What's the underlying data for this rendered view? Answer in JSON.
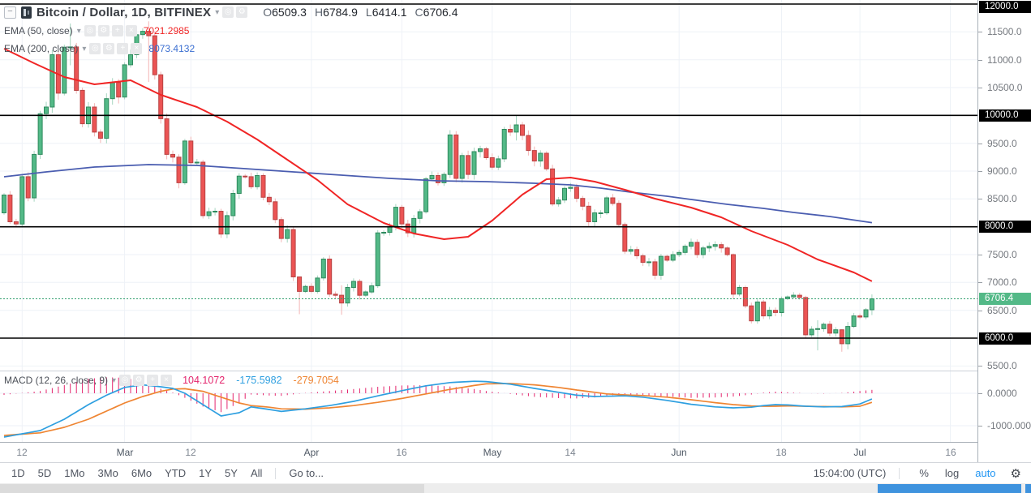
{
  "colors": {
    "up_fill": "#53b987",
    "up_border": "#2f8a5e",
    "up_wick": "#a6d6c0",
    "down_fill": "#eb5454",
    "down_border": "#b84444",
    "down_wick": "#f3b5b5",
    "ema50": "#f02525",
    "ema200": "#4a5db0",
    "macd_line": "#2e9fe0",
    "signal_line": "#ef8532",
    "hist": "#e4256d",
    "grid": "#eef2f7",
    "pane_border": "#ccd1d8",
    "black_line": "#000000",
    "last_price_line": "#33a06f",
    "last_price_tag_bg": "#53b987",
    "accent_blue": "#2196f3"
  },
  "header": {
    "collapse_label": "−",
    "title": "Bitcoin / Dollar, 1D, BITFINEX",
    "caret": "▾",
    "ohlc": [
      {
        "k": "O",
        "v": "6509.3"
      },
      {
        "k": "H",
        "v": "6784.9"
      },
      {
        "k": "L",
        "v": "6414.1"
      },
      {
        "k": "C",
        "v": "6706.4"
      }
    ]
  },
  "indicators": [
    {
      "name": "EMA (50, close)",
      "caret": "▾",
      "value": "7021.2985",
      "value_color": "#f02525"
    },
    {
      "name": "EMA (200, close)",
      "caret": "▾",
      "value": "8073.4132",
      "value_color": "#3b6fd1"
    }
  ],
  "macd_indicator": {
    "name": "MACD (12, 26, close, 9)",
    "caret": "▾",
    "values": [
      {
        "v": "104.1072",
        "color": "#e4256d"
      },
      {
        "v": "-175.5982",
        "color": "#2e9fe0"
      },
      {
        "v": "-279.7054",
        "color": "#ef8532"
      }
    ]
  },
  "price_axis": {
    "ticks": [
      {
        "text": "12000.0",
        "price": 12000,
        "style": "black"
      },
      {
        "text": "11500.0",
        "price": 11500,
        "style": "plain"
      },
      {
        "text": "11000.0",
        "price": 11000,
        "style": "plain"
      },
      {
        "text": "10500.0",
        "price": 10500,
        "style": "plain"
      },
      {
        "text": "10000.0",
        "price": 10000,
        "style": "black"
      },
      {
        "text": "9500.0",
        "price": 9500,
        "style": "plain"
      },
      {
        "text": "9000.0",
        "price": 9000,
        "style": "plain"
      },
      {
        "text": "8500.0",
        "price": 8500,
        "style": "plain"
      },
      {
        "text": "8000.0",
        "price": 8000,
        "style": "black"
      },
      {
        "text": "7500.0",
        "price": 7500,
        "style": "plain"
      },
      {
        "text": "7000.0",
        "price": 7000,
        "style": "plain"
      },
      {
        "text": "6706.4",
        "price": 6706.4,
        "style": "green"
      },
      {
        "text": "6500.0",
        "price": 6500,
        "style": "plain"
      },
      {
        "text": "6000.0",
        "price": 6000,
        "style": "black"
      },
      {
        "text": "5500.0",
        "price": 5500,
        "style": "plain"
      }
    ],
    "macd_ticks": [
      {
        "text": "0.0000",
        "value": 0
      },
      {
        "text": "-1000.0000",
        "value": -1000
      }
    ]
  },
  "time_axis": [
    {
      "text": "12",
      "i": 3,
      "month": false
    },
    {
      "text": "Mar",
      "i": 20,
      "month": true
    },
    {
      "text": "12",
      "i": 31,
      "month": false
    },
    {
      "text": "Apr",
      "i": 51,
      "month": true
    },
    {
      "text": "16",
      "i": 66,
      "month": false
    },
    {
      "text": "May",
      "i": 81,
      "month": true
    },
    {
      "text": "14",
      "i": 94,
      "month": false
    },
    {
      "text": "Jun",
      "i": 112,
      "month": true
    },
    {
      "text": "18",
      "i": 129,
      "month": false
    },
    {
      "text": "Jul",
      "i": 142,
      "month": true
    },
    {
      "text": "16",
      "i": 157,
      "month": false
    }
  ],
  "toolbar": {
    "ranges": [
      "1D",
      "5D",
      "1Mo",
      "3Mo",
      "6Mo",
      "YTD",
      "1Y",
      "5Y",
      "All"
    ],
    "goto_label": "Go to...",
    "clock": "15:04:00 (UTC)",
    "percent_label": "%",
    "log_label": "log",
    "auto_label": "auto"
  },
  "chart_data": {
    "type": "candlestick",
    "title": "Bitcoin / Dollar, 1D, BITFINEX",
    "interval": "1D",
    "first_candle_date": "2018-02-09",
    "open_first": 8250,
    "closes": [
      8570,
      8090,
      8050,
      8900,
      8520,
      9300,
      10030,
      10150,
      11090,
      10400,
      11225,
      11230,
      10450,
      9850,
      10150,
      9700,
      9590,
      10300,
      10590,
      10330,
      10910,
      11090,
      11450,
      11510,
      11430,
      10730,
      9940,
      9300,
      9250,
      8790,
      9540,
      9150,
      9160,
      8200,
      8270,
      8280,
      7870,
      8200,
      8600,
      8910,
      8900,
      8720,
      8920,
      8530,
      8450,
      8130,
      7790,
      7950,
      7100,
      6840,
      6930,
      6840,
      7080,
      7420,
      6790,
      6770,
      6630,
      6910,
      7020,
      6770,
      6830,
      6940,
      7890,
      7900,
      8000,
      8350,
      8050,
      7890,
      8150,
      8270,
      8860,
      8920,
      8790,
      8940,
      9650,
      8870,
      9280,
      8940,
      9350,
      9400,
      9240,
      9070,
      9220,
      9750,
      9700,
      9830,
      9640,
      9370,
      9180,
      9320,
      9040,
      8410,
      8480,
      8690,
      8710,
      8510,
      8370,
      8090,
      8250,
      8250,
      8520,
      8420,
      8040,
      7560,
      7590,
      7480,
      7360,
      7370,
      7130,
      7470,
      7400,
      7500,
      7540,
      7650,
      7720,
      7500,
      7620,
      7650,
      7680,
      7620,
      7500,
      6790,
      6910,
      6580,
      6310,
      6650,
      6400,
      6500,
      6460,
      6710,
      6740,
      6770,
      6730,
      6060,
      6160,
      6170,
      6250,
      6090,
      6150,
      5900,
      6210,
      6400,
      6380,
      6509.3,
      6706.4
    ],
    "wick_overrides": {
      "11": [
        11650,
        10900
      ],
      "24": [
        11690,
        10600
      ],
      "49": [
        6980,
        6430
      ],
      "56": [
        6950,
        6420
      ],
      "85": [
        9990,
        9550
      ],
      "121": [
        7520,
        6700
      ],
      "133": [
        6760,
        5995
      ],
      "135": [
        6320,
        5780
      ],
      "139": [
        6160,
        5755
      ],
      "140": [
        6290,
        5800
      ],
      "144": [
        6784.9,
        6414.1
      ]
    },
    "last_candle": {
      "open": 6509.3,
      "high": 6784.9,
      "low": 6414.1,
      "close": 6706.4
    },
    "last_price": 6706.4,
    "price_grid": [
      11500,
      11000,
      10500,
      9500,
      9000,
      8500,
      7500,
      7000,
      6500,
      5500
    ],
    "black_levels": [
      12000,
      10000,
      8000,
      6000
    ],
    "ema50_points": [
      [
        0,
        11199
      ],
      [
        5,
        10937
      ],
      [
        10,
        10689
      ],
      [
        15,
        10558
      ],
      [
        21,
        10631
      ],
      [
        26,
        10369
      ],
      [
        32,
        10150
      ],
      [
        37,
        9888
      ],
      [
        42,
        9568
      ],
      [
        46,
        9277
      ],
      [
        52,
        8840
      ],
      [
        57,
        8403
      ],
      [
        63,
        8068
      ],
      [
        68,
        7879
      ],
      [
        73,
        7777
      ],
      [
        77,
        7821
      ],
      [
        81,
        8112
      ],
      [
        86,
        8578
      ],
      [
        90,
        8855
      ],
      [
        94,
        8884
      ],
      [
        98,
        8811
      ],
      [
        103,
        8665
      ],
      [
        108,
        8505
      ],
      [
        114,
        8345
      ],
      [
        119,
        8170
      ],
      [
        124,
        7923
      ],
      [
        130,
        7675
      ],
      [
        135,
        7413
      ],
      [
        141,
        7180
      ],
      [
        144,
        7021.3
      ]
    ],
    "ema200_points": [
      [
        0,
        8898
      ],
      [
        7,
        8986
      ],
      [
        15,
        9073
      ],
      [
        24,
        9117
      ],
      [
        32,
        9102
      ],
      [
        40,
        9044
      ],
      [
        48,
        8986
      ],
      [
        56,
        8928
      ],
      [
        64,
        8869
      ],
      [
        72,
        8826
      ],
      [
        80,
        8811
      ],
      [
        88,
        8782
      ],
      [
        94,
        8753
      ],
      [
        99,
        8695
      ],
      [
        104,
        8622
      ],
      [
        110,
        8549
      ],
      [
        115,
        8476
      ],
      [
        120,
        8403
      ],
      [
        126,
        8330
      ],
      [
        131,
        8258
      ],
      [
        137,
        8185
      ],
      [
        144,
        8073.4
      ]
    ],
    "macd_points": [
      [
        0,
        -1350
      ],
      [
        6,
        -1150
      ],
      [
        10,
        -800
      ],
      [
        14,
        -350
      ],
      [
        17,
        -60
      ],
      [
        20,
        180
      ],
      [
        23,
        260
      ],
      [
        26,
        200
      ],
      [
        28,
        150
      ],
      [
        30,
        0
      ],
      [
        33,
        -350
      ],
      [
        36,
        -700
      ],
      [
        39,
        -600
      ],
      [
        41,
        -420
      ],
      [
        44,
        -500
      ],
      [
        46,
        -560
      ],
      [
        50,
        -480
      ],
      [
        54,
        -380
      ],
      [
        58,
        -250
      ],
      [
        62,
        -80
      ],
      [
        66,
        80
      ],
      [
        70,
        230
      ],
      [
        74,
        330
      ],
      [
        78,
        370
      ],
      [
        80,
        360
      ],
      [
        84,
        280
      ],
      [
        88,
        150
      ],
      [
        92,
        30
      ],
      [
        95,
        -60
      ],
      [
        98,
        -100
      ],
      [
        100,
        -90
      ],
      [
        103,
        -80
      ],
      [
        106,
        -120
      ],
      [
        110,
        -220
      ],
      [
        114,
        -340
      ],
      [
        118,
        -420
      ],
      [
        121,
        -450
      ],
      [
        124,
        -430
      ],
      [
        126,
        -380
      ],
      [
        128,
        -350
      ],
      [
        130,
        -360
      ],
      [
        133,
        -400
      ],
      [
        136,
        -420
      ],
      [
        139,
        -410
      ],
      [
        142,
        -330
      ],
      [
        144,
        -176
      ]
    ],
    "signal_points": [
      [
        0,
        -1300
      ],
      [
        6,
        -1220
      ],
      [
        10,
        -1050
      ],
      [
        14,
        -800
      ],
      [
        17,
        -550
      ],
      [
        20,
        -300
      ],
      [
        23,
        -100
      ],
      [
        26,
        60
      ],
      [
        28,
        130
      ],
      [
        30,
        140
      ],
      [
        33,
        60
      ],
      [
        36,
        -120
      ],
      [
        39,
        -300
      ],
      [
        41,
        -380
      ],
      [
        44,
        -430
      ],
      [
        46,
        -480
      ],
      [
        50,
        -490
      ],
      [
        54,
        -450
      ],
      [
        58,
        -380
      ],
      [
        62,
        -280
      ],
      [
        66,
        -160
      ],
      [
        70,
        -20
      ],
      [
        74,
        120
      ],
      [
        78,
        240
      ],
      [
        80,
        290
      ],
      [
        84,
        300
      ],
      [
        88,
        260
      ],
      [
        92,
        180
      ],
      [
        95,
        100
      ],
      [
        98,
        30
      ],
      [
        100,
        -20
      ],
      [
        103,
        -50
      ],
      [
        106,
        -70
      ],
      [
        110,
        -120
      ],
      [
        114,
        -200
      ],
      [
        118,
        -290
      ],
      [
        121,
        -350
      ],
      [
        124,
        -390
      ],
      [
        126,
        -400
      ],
      [
        128,
        -400
      ],
      [
        130,
        -390
      ],
      [
        133,
        -400
      ],
      [
        136,
        -410
      ],
      [
        139,
        -420
      ],
      [
        142,
        -400
      ],
      [
        144,
        -280
      ]
    ],
    "macd_grid": [
      0,
      -1000
    ],
    "ylim_price": [
      5350,
      12070
    ],
    "ylim_macd": [
      -1700,
      700
    ]
  }
}
